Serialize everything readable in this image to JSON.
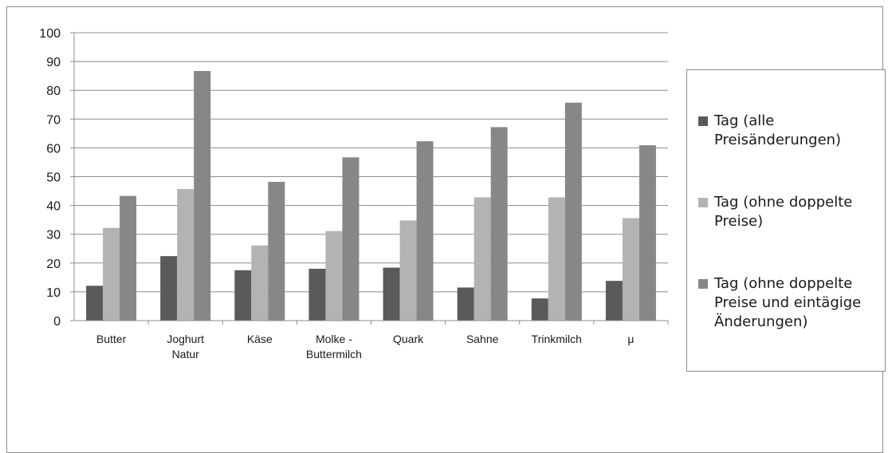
{
  "chart_data": {
    "type": "bar",
    "categories": [
      [
        "Butter"
      ],
      [
        "Joghurt",
        "Natur"
      ],
      [
        "Käse"
      ],
      [
        "Molke -",
        "Buttermilch"
      ],
      [
        "Quark"
      ],
      [
        "Sahne"
      ],
      [
        "Trinkmilch"
      ],
      [
        "μ"
      ]
    ],
    "series": [
      {
        "name": "Tag (alle Preisänderungen)",
        "color": "#5a5a5a",
        "values": [
          12.1,
          22.4,
          17.5,
          18.0,
          18.4,
          11.5,
          7.7,
          13.8
        ]
      },
      {
        "name": "Tag (ohne doppelte Preise)",
        "color": "#b3b3b3",
        "values": [
          32.2,
          45.7,
          26.1,
          31.1,
          34.8,
          42.8,
          42.8,
          35.6
        ]
      },
      {
        "name": "Tag (ohne doppelte Preise und eintägige Änderungen)",
        "color": "#878787",
        "values": [
          43.3,
          86.7,
          48.2,
          56.7,
          62.3,
          67.2,
          75.7,
          60.9
        ]
      }
    ],
    "yticks": [
      "0",
      "10",
      "20",
      "30",
      "40",
      "50",
      "60",
      "70",
      "80",
      "90",
      "100"
    ],
    "ylim": [
      0,
      100
    ],
    "grid": true,
    "legend_position": "right",
    "title": "",
    "xlabel": "",
    "ylabel": ""
  }
}
